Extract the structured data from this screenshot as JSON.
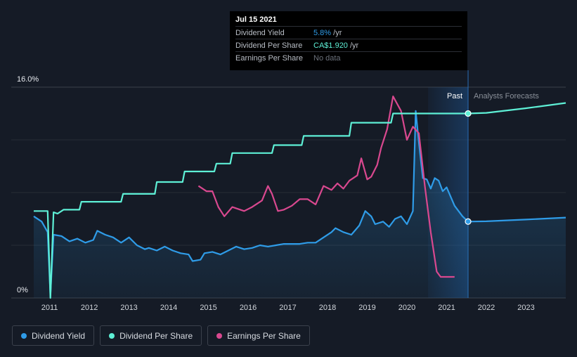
{
  "tooltip": {
    "date": "Jul 15 2021",
    "rows": [
      {
        "key": "Dividend Yield",
        "value": "5.8%",
        "unit": " /yr"
      },
      {
        "key": "Dividend Per Share",
        "value": "CA$1.920",
        "unit": " /yr"
      },
      {
        "key": "Earnings Per Share",
        "value": "No data",
        "unit": ""
      }
    ]
  },
  "legend": {
    "items": [
      {
        "label": "Dividend Yield",
        "color": "#2f9ce8"
      },
      {
        "label": "Dividend Per Share",
        "color": "#5ef0d6"
      },
      {
        "label": "Earnings Per Share",
        "color": "#d9488f"
      }
    ]
  },
  "chart_data": {
    "type": "line",
    "y_axis": {
      "min_label": "0%",
      "max_label": "16.0%",
      "range": [
        0,
        16
      ]
    },
    "x_axis": {
      "ticks": [
        "2011",
        "2012",
        "2013",
        "2014",
        "2015",
        "2016",
        "2017",
        "2018",
        "2019",
        "2020",
        "2021",
        "2022",
        "2023"
      ]
    },
    "regions": {
      "past_label": "Past",
      "forecast_label": "Analysts Forecasts",
      "divider_x": 2021.54,
      "shade_start_x": 2020.53
    },
    "grid": true,
    "colors": {
      "yield": "#2f9ce8",
      "dps": "#5ef0d6",
      "eps": "#d9488f"
    },
    "series": [
      {
        "name": "Dividend Yield",
        "key": "yield",
        "area": true,
        "points": [
          [
            2010.6,
            6.2
          ],
          [
            2010.8,
            5.8
          ],
          [
            2010.95,
            5.0
          ],
          [
            2011.02,
            0.2
          ],
          [
            2011.1,
            4.8
          ],
          [
            2011.3,
            4.7
          ],
          [
            2011.5,
            4.3
          ],
          [
            2011.7,
            4.5
          ],
          [
            2011.9,
            4.2
          ],
          [
            2012.1,
            4.4
          ],
          [
            2012.2,
            5.1
          ],
          [
            2012.4,
            4.8
          ],
          [
            2012.6,
            4.6
          ],
          [
            2012.8,
            4.2
          ],
          [
            2013.0,
            4.6
          ],
          [
            2013.2,
            4.0
          ],
          [
            2013.4,
            3.7
          ],
          [
            2013.5,
            3.8
          ],
          [
            2013.7,
            3.6
          ],
          [
            2013.9,
            3.9
          ],
          [
            2014.1,
            3.6
          ],
          [
            2014.3,
            3.4
          ],
          [
            2014.5,
            3.3
          ],
          [
            2014.6,
            2.8
          ],
          [
            2014.8,
            2.9
          ],
          [
            2014.9,
            3.4
          ],
          [
            2015.1,
            3.5
          ],
          [
            2015.3,
            3.3
          ],
          [
            2015.5,
            3.6
          ],
          [
            2015.7,
            3.9
          ],
          [
            2015.9,
            3.7
          ],
          [
            2016.1,
            3.8
          ],
          [
            2016.3,
            4.0
          ],
          [
            2016.5,
            3.9
          ],
          [
            2016.7,
            4.0
          ],
          [
            2016.9,
            4.1
          ],
          [
            2017.1,
            4.1
          ],
          [
            2017.3,
            4.1
          ],
          [
            2017.5,
            4.2
          ],
          [
            2017.7,
            4.2
          ],
          [
            2017.9,
            4.6
          ],
          [
            2018.1,
            5.0
          ],
          [
            2018.2,
            5.3
          ],
          [
            2018.4,
            5.0
          ],
          [
            2018.6,
            4.8
          ],
          [
            2018.8,
            5.5
          ],
          [
            2018.95,
            6.6
          ],
          [
            2019.1,
            6.2
          ],
          [
            2019.2,
            5.6
          ],
          [
            2019.4,
            5.8
          ],
          [
            2019.55,
            5.4
          ],
          [
            2019.7,
            6.0
          ],
          [
            2019.85,
            6.2
          ],
          [
            2020.0,
            5.6
          ],
          [
            2020.15,
            6.6
          ],
          [
            2020.22,
            14.2
          ],
          [
            2020.3,
            11.8
          ],
          [
            2020.4,
            9.1
          ],
          [
            2020.5,
            9.0
          ],
          [
            2020.6,
            8.3
          ],
          [
            2020.7,
            9.1
          ],
          [
            2020.8,
            8.9
          ],
          [
            2020.9,
            8.1
          ],
          [
            2021.0,
            8.4
          ],
          [
            2021.2,
            7.0
          ],
          [
            2021.4,
            6.2
          ],
          [
            2021.54,
            5.8
          ],
          [
            2022.0,
            5.82
          ],
          [
            2023.0,
            5.95
          ],
          [
            2024.0,
            6.1
          ]
        ]
      },
      {
        "name": "Dividend Per Share",
        "key": "dps",
        "area": false,
        "points": [
          [
            2010.6,
            6.6
          ],
          [
            2010.95,
            6.6
          ],
          [
            2011.02,
            0.0
          ],
          [
            2011.1,
            6.5
          ],
          [
            2011.2,
            6.4
          ],
          [
            2011.35,
            6.7
          ],
          [
            2011.75,
            6.7
          ],
          [
            2011.8,
            7.3
          ],
          [
            2012.8,
            7.3
          ],
          [
            2012.85,
            7.9
          ],
          [
            2013.65,
            7.9
          ],
          [
            2013.7,
            8.8
          ],
          [
            2014.35,
            8.8
          ],
          [
            2014.4,
            9.6
          ],
          [
            2015.15,
            9.6
          ],
          [
            2015.2,
            10.2
          ],
          [
            2015.55,
            10.2
          ],
          [
            2015.6,
            11.0
          ],
          [
            2016.6,
            11.0
          ],
          [
            2016.65,
            11.6
          ],
          [
            2017.35,
            11.6
          ],
          [
            2017.4,
            12.3
          ],
          [
            2018.55,
            12.3
          ],
          [
            2018.6,
            13.3
          ],
          [
            2019.6,
            13.3
          ],
          [
            2019.65,
            14.0
          ],
          [
            2021.54,
            14.0
          ],
          [
            2022.0,
            14.05
          ],
          [
            2023.0,
            14.4
          ],
          [
            2024.0,
            14.8
          ]
        ]
      },
      {
        "name": "Earnings Per Share",
        "key": "eps",
        "area": false,
        "points": [
          [
            2014.75,
            8.5
          ],
          [
            2014.95,
            8.1
          ],
          [
            2015.1,
            8.1
          ],
          [
            2015.25,
            6.9
          ],
          [
            2015.4,
            6.2
          ],
          [
            2015.6,
            6.9
          ],
          [
            2015.9,
            6.6
          ],
          [
            2016.1,
            6.9
          ],
          [
            2016.35,
            7.4
          ],
          [
            2016.5,
            8.5
          ],
          [
            2016.6,
            7.9
          ],
          [
            2016.75,
            6.6
          ],
          [
            2016.9,
            6.7
          ],
          [
            2017.1,
            7.0
          ],
          [
            2017.3,
            7.5
          ],
          [
            2017.5,
            7.5
          ],
          [
            2017.7,
            7.1
          ],
          [
            2017.9,
            8.5
          ],
          [
            2018.1,
            8.2
          ],
          [
            2018.25,
            8.7
          ],
          [
            2018.4,
            8.3
          ],
          [
            2018.55,
            8.9
          ],
          [
            2018.75,
            9.3
          ],
          [
            2018.85,
            10.6
          ],
          [
            2019.0,
            9.0
          ],
          [
            2019.1,
            9.2
          ],
          [
            2019.25,
            10.1
          ],
          [
            2019.35,
            11.4
          ],
          [
            2019.5,
            12.8
          ],
          [
            2019.65,
            15.3
          ],
          [
            2019.85,
            14.2
          ],
          [
            2020.0,
            12.0
          ],
          [
            2020.15,
            13.0
          ],
          [
            2020.3,
            12.5
          ],
          [
            2020.45,
            8.5
          ],
          [
            2020.6,
            5.0
          ],
          [
            2020.75,
            2.0
          ],
          [
            2020.85,
            1.6
          ],
          [
            2021.1,
            1.6
          ],
          [
            2021.2,
            1.6
          ]
        ]
      }
    ],
    "markers": [
      {
        "series": "dps",
        "x": 2021.54,
        "y": 14.0
      },
      {
        "series": "yield",
        "x": 2021.54,
        "y": 5.8
      }
    ]
  }
}
